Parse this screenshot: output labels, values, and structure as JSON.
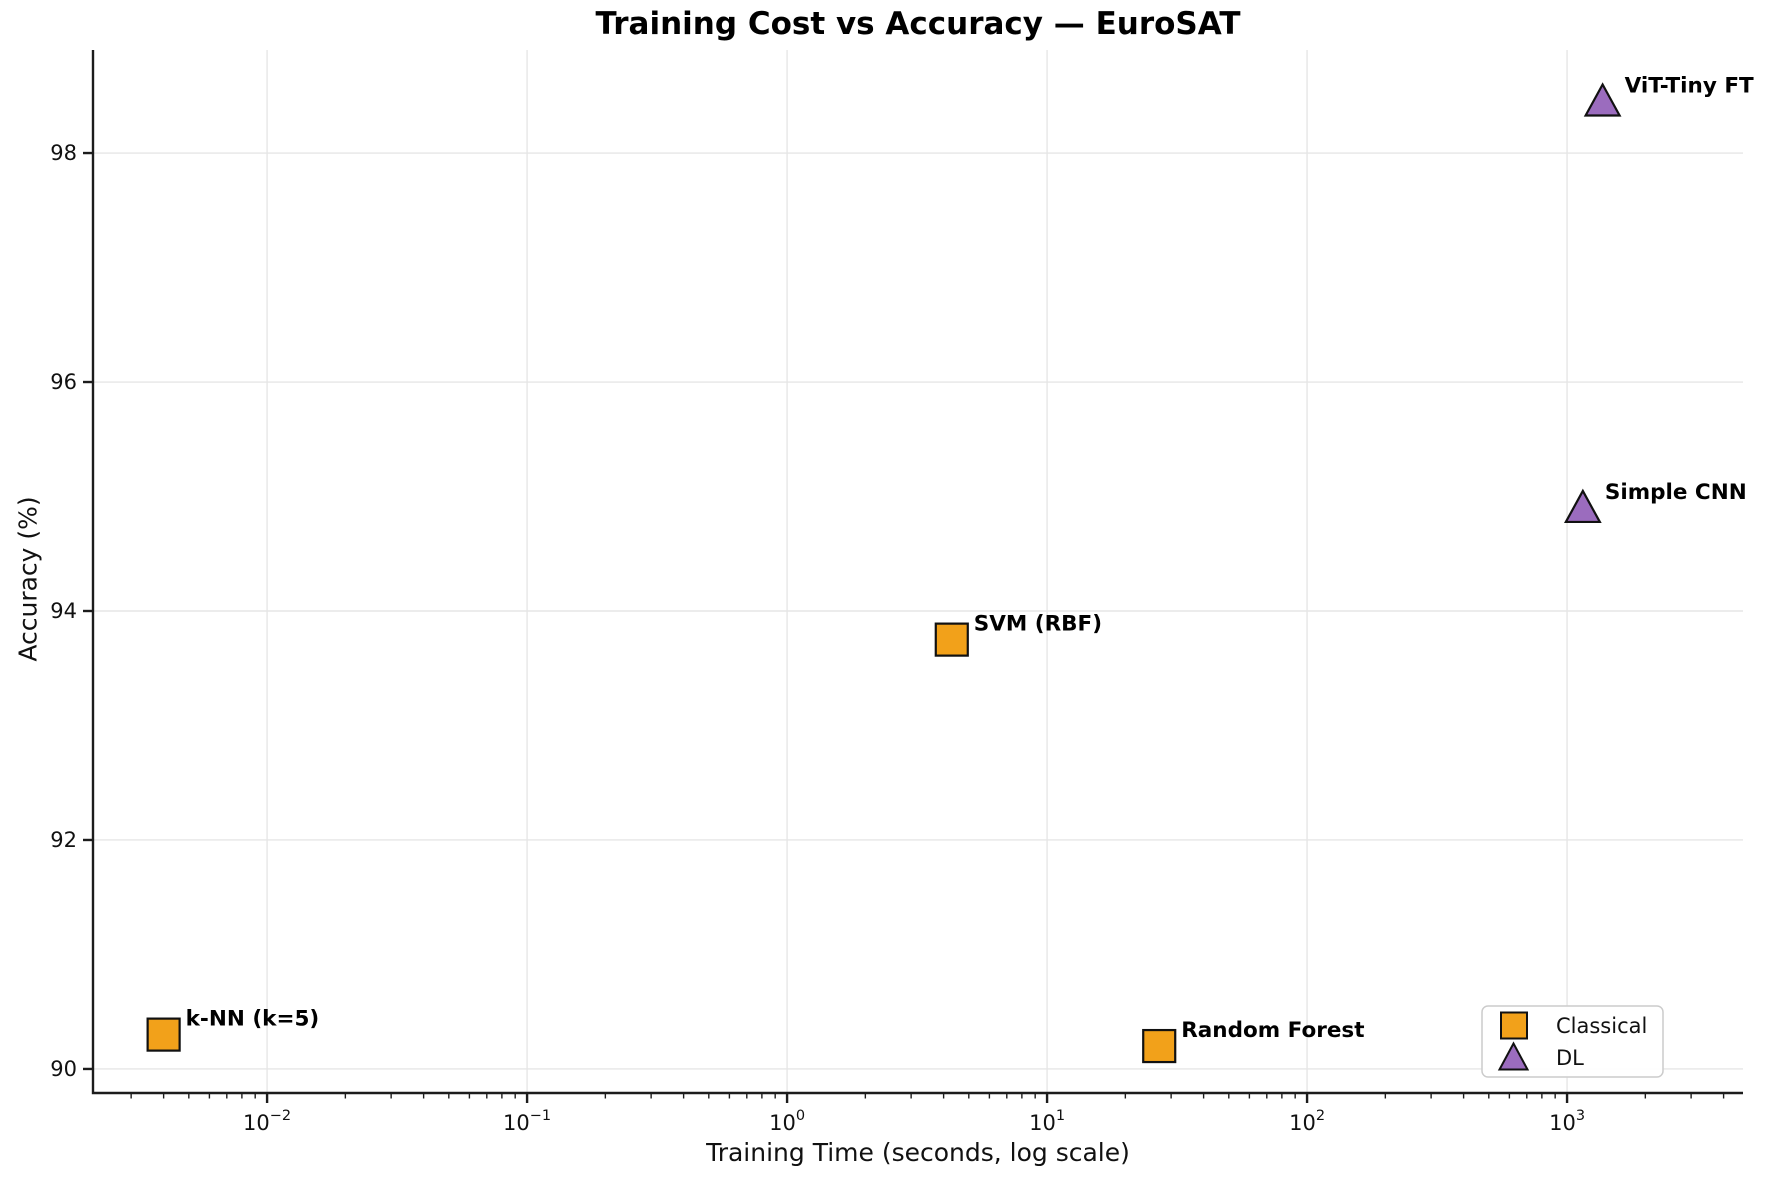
{
  "chart_data": {
    "type": "scatter",
    "title": "Training Cost vs Accuracy — EuroSAT",
    "xlabel": "Training Time (seconds, log scale)",
    "ylabel": "Accuracy (%)",
    "x_scale": "log",
    "y_scale": "linear",
    "xlim": [
      0.00214,
      4750
    ],
    "ylim": [
      89.79,
      98.9
    ],
    "x_major_tick_exponents": [
      -2,
      -1,
      0,
      1,
      2,
      3
    ],
    "x_tick_labels": [
      "10⁻²",
      "10⁻¹",
      "10⁰",
      "10¹",
      "10²",
      "10³"
    ],
    "y_ticks": [
      90,
      92,
      94,
      96,
      98
    ],
    "grid": true,
    "colors": {
      "classical": "#f2a11a",
      "dl": "#9b6cbe",
      "marker_edge": "#111111",
      "grid": "#e6e6e6",
      "axis": "#1c1c1c"
    },
    "legend": {
      "position": "lower right",
      "entries": [
        {
          "label": "Classical",
          "marker": "square",
          "color_key": "classical"
        },
        {
          "label": "DL",
          "marker": "triangle",
          "color_key": "dl"
        }
      ]
    },
    "points": [
      {
        "label": "k-NN (k=5)",
        "group": "Classical",
        "marker": "square",
        "color_key": "classical",
        "x": 0.004,
        "y": 90.3
      },
      {
        "label": "SVM (RBF)",
        "group": "Classical",
        "marker": "square",
        "color_key": "classical",
        "x": 4.3,
        "y": 93.75
      },
      {
        "label": "Random Forest",
        "group": "Classical",
        "marker": "square",
        "color_key": "classical",
        "x": 27,
        "y": 90.2
      },
      {
        "label": "Simple CNN",
        "group": "DL",
        "marker": "triangle",
        "color_key": "dl",
        "x": 1150,
        "y": 94.9
      },
      {
        "label": "ViT-Tiny FT",
        "group": "DL",
        "marker": "triangle",
        "color_key": "dl",
        "x": 1370,
        "y": 98.45
      }
    ]
  }
}
